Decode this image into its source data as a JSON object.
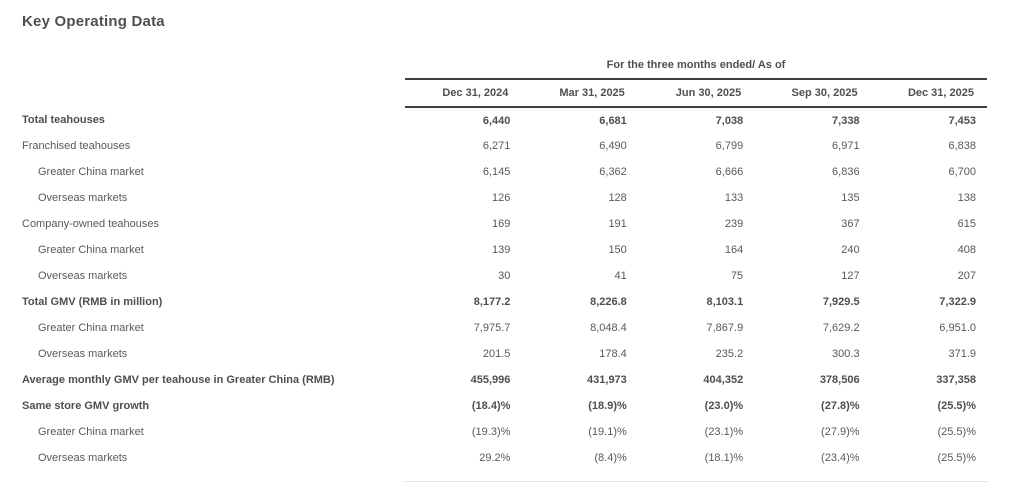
{
  "page_title": "Key Operating Data",
  "table": {
    "period_header": "For the three months ended/ As of",
    "columns": [
      "Dec 31, 2024",
      "Mar 31, 2025",
      "Jun 30, 2025",
      "Sep 30, 2025",
      "Dec 31, 2025"
    ],
    "rows": [
      {
        "label": "Total teahouses",
        "bold": true,
        "indent": 0,
        "values": [
          "6,440",
          "6,681",
          "7,038",
          "7,338",
          "7,453"
        ]
      },
      {
        "label": "Franchised teahouses",
        "bold": false,
        "indent": 0,
        "values": [
          "6,271",
          "6,490",
          "6,799",
          "6,971",
          "6,838"
        ]
      },
      {
        "label": "Greater China market",
        "bold": false,
        "indent": 1,
        "values": [
          "6,145",
          "6,362",
          "6,666",
          "6,836",
          "6,700"
        ]
      },
      {
        "label": "Overseas markets",
        "bold": false,
        "indent": 1,
        "values": [
          "126",
          "128",
          "133",
          "135",
          "138"
        ]
      },
      {
        "label": "Company-owned teahouses",
        "bold": false,
        "indent": 0,
        "values": [
          "169",
          "191",
          "239",
          "367",
          "615"
        ]
      },
      {
        "label": "Greater China market",
        "bold": false,
        "indent": 1,
        "values": [
          "139",
          "150",
          "164",
          "240",
          "408"
        ]
      },
      {
        "label": "Overseas markets",
        "bold": false,
        "indent": 1,
        "values": [
          "30",
          "41",
          "75",
          "127",
          "207"
        ]
      },
      {
        "label": "Total GMV (RMB in million)",
        "bold": true,
        "indent": 0,
        "values": [
          "8,177.2",
          "8,226.8",
          "8,103.1",
          "7,929.5",
          "7,322.9"
        ]
      },
      {
        "label": "Greater China market",
        "bold": false,
        "indent": 1,
        "values": [
          "7,975.7",
          "8,048.4",
          "7,867.9",
          "7,629.2",
          "6,951.0"
        ]
      },
      {
        "label": "Overseas markets",
        "bold": false,
        "indent": 1,
        "values": [
          "201.5",
          "178.4",
          "235.2",
          "300.3",
          "371.9"
        ]
      },
      {
        "label": "Average monthly GMV per teahouse in Greater China (RMB)",
        "bold": true,
        "indent": 0,
        "values": [
          "455,996",
          "431,973",
          "404,352",
          "378,506",
          "337,358"
        ]
      },
      {
        "label": "Same store GMV growth",
        "bold": true,
        "indent": 0,
        "values": [
          "(18.4)%",
          "(18.9)%",
          "(23.0)%",
          "(27.8)%",
          "(25.5)%"
        ]
      },
      {
        "label": "Greater China market",
        "bold": false,
        "indent": 1,
        "values": [
          "(19.3)%",
          "(19.1)%",
          "(23.1)%",
          "(27.9)%",
          "(25.5)%"
        ]
      },
      {
        "label": "Overseas markets",
        "bold": false,
        "indent": 1,
        "values": [
          "29.2%",
          "(8.4)%",
          "(18.1)%",
          "(23.4)%",
          "(25.5)%"
        ]
      }
    ]
  },
  "colors": {
    "text": "#595959",
    "heading_text": "#4f4f4f",
    "rule_dark": "#404040",
    "rule_light": "#dbe1e7",
    "background": "#ffffff"
  }
}
